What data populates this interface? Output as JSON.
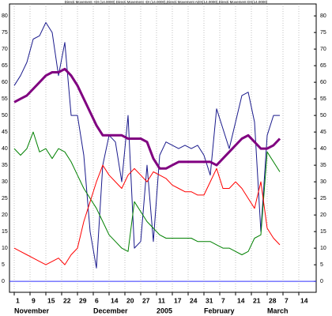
{
  "chart_data": {
    "type": "line",
    "title": "Directi Movement +DI (14.0000) Directi Movement -DI (14.0000),Directi Movement ADX(14.0000),Directi Movement DX(14.0000)",
    "x": [
      0,
      2,
      4,
      6,
      8,
      10,
      12,
      14,
      16,
      18,
      20,
      22,
      24,
      26,
      28,
      30,
      32,
      34,
      36,
      38,
      40,
      42,
      44,
      46,
      48,
      50,
      52,
      54,
      56,
      58,
      60,
      62,
      64,
      66,
      68,
      70,
      72,
      74,
      76,
      78,
      80,
      82,
      84
    ],
    "series": [
      {
        "color": "#1a1a8c",
        "width": 1,
        "values": [
          59,
          62,
          66,
          73,
          74,
          78,
          75,
          62,
          72,
          50,
          50,
          38,
          15,
          4,
          35,
          44,
          42,
          30,
          50,
          10,
          12,
          35,
          12,
          38,
          42,
          41,
          40,
          41,
          40,
          41,
          38,
          32,
          52,
          46,
          40,
          48,
          56,
          57,
          48,
          15,
          44,
          50,
          50
        ]
      },
      {
        "color": "#008000",
        "width": 1,
        "values": [
          40,
          38,
          40,
          45,
          39,
          40,
          37,
          40,
          39,
          36,
          32,
          28,
          25,
          22,
          18,
          14,
          12,
          10,
          9,
          24,
          21,
          18,
          16,
          14,
          13,
          13,
          13,
          13,
          13,
          12,
          12,
          12,
          11,
          10,
          10,
          9,
          8,
          9,
          13,
          14,
          39,
          36,
          33
        ]
      },
      {
        "color": "#ff0000",
        "width": 1,
        "values": [
          10,
          9,
          8,
          7,
          6,
          5,
          6,
          7,
          5,
          8,
          10,
          18,
          24,
          30,
          35,
          32,
          30,
          28,
          32,
          34,
          32,
          30,
          33,
          32,
          31,
          29,
          28,
          27,
          27,
          26,
          26,
          30,
          34,
          28,
          28,
          30,
          28,
          25,
          22,
          30,
          16,
          13,
          11
        ]
      },
      {
        "color": "#800080",
        "width": 3,
        "values": [
          54,
          55,
          56,
          58,
          60,
          62,
          63,
          63,
          64,
          62,
          59,
          55,
          51,
          47,
          44,
          44,
          44,
          44,
          43,
          43,
          43,
          42,
          37,
          34,
          34,
          35,
          36,
          36,
          36,
          36,
          36,
          36,
          35,
          37,
          39,
          41,
          43,
          44,
          42,
          40,
          40,
          41,
          43
        ]
      }
    ],
    "xlim": [
      -1.5,
      95.5
    ],
    "xticks": [
      {
        "value": 0,
        "label": "1"
      },
      {
        "value": 5,
        "label": "9"
      },
      {
        "value": 10,
        "label": "15"
      },
      {
        "value": 15,
        "label": "22"
      },
      {
        "value": 20,
        "label": "29"
      },
      {
        "value": 25,
        "label": "6"
      },
      {
        "value": 30,
        "label": "14"
      },
      {
        "value": 35,
        "label": "20"
      },
      {
        "value": 40,
        "label": "27"
      },
      {
        "value": 45,
        "label": "11"
      },
      {
        "value": 50,
        "label": "17"
      },
      {
        "value": 55,
        "label": "24"
      },
      {
        "value": 60,
        "label": "31"
      },
      {
        "value": 65,
        "label": "7"
      },
      {
        "value": 70,
        "label": "14"
      },
      {
        "value": 75,
        "label": "21"
      },
      {
        "value": 80,
        "label": "28"
      },
      {
        "value": 85,
        "label": "7"
      },
      {
        "value": 90,
        "label": "14"
      }
    ],
    "x_months": [
      {
        "value": 0,
        "label": "November"
      },
      {
        "value": 25,
        "label": "December"
      },
      {
        "value": 45,
        "label": "2005"
      },
      {
        "value": 60,
        "label": "February"
      },
      {
        "value": 80,
        "label": "March"
      }
    ],
    "ylim": [
      -3.3,
      83.6
    ],
    "yticks": [
      0,
      5,
      10,
      15,
      20,
      25,
      30,
      35,
      40,
      45,
      50,
      55,
      60,
      65,
      70,
      75,
      80
    ],
    "grid": true
  }
}
